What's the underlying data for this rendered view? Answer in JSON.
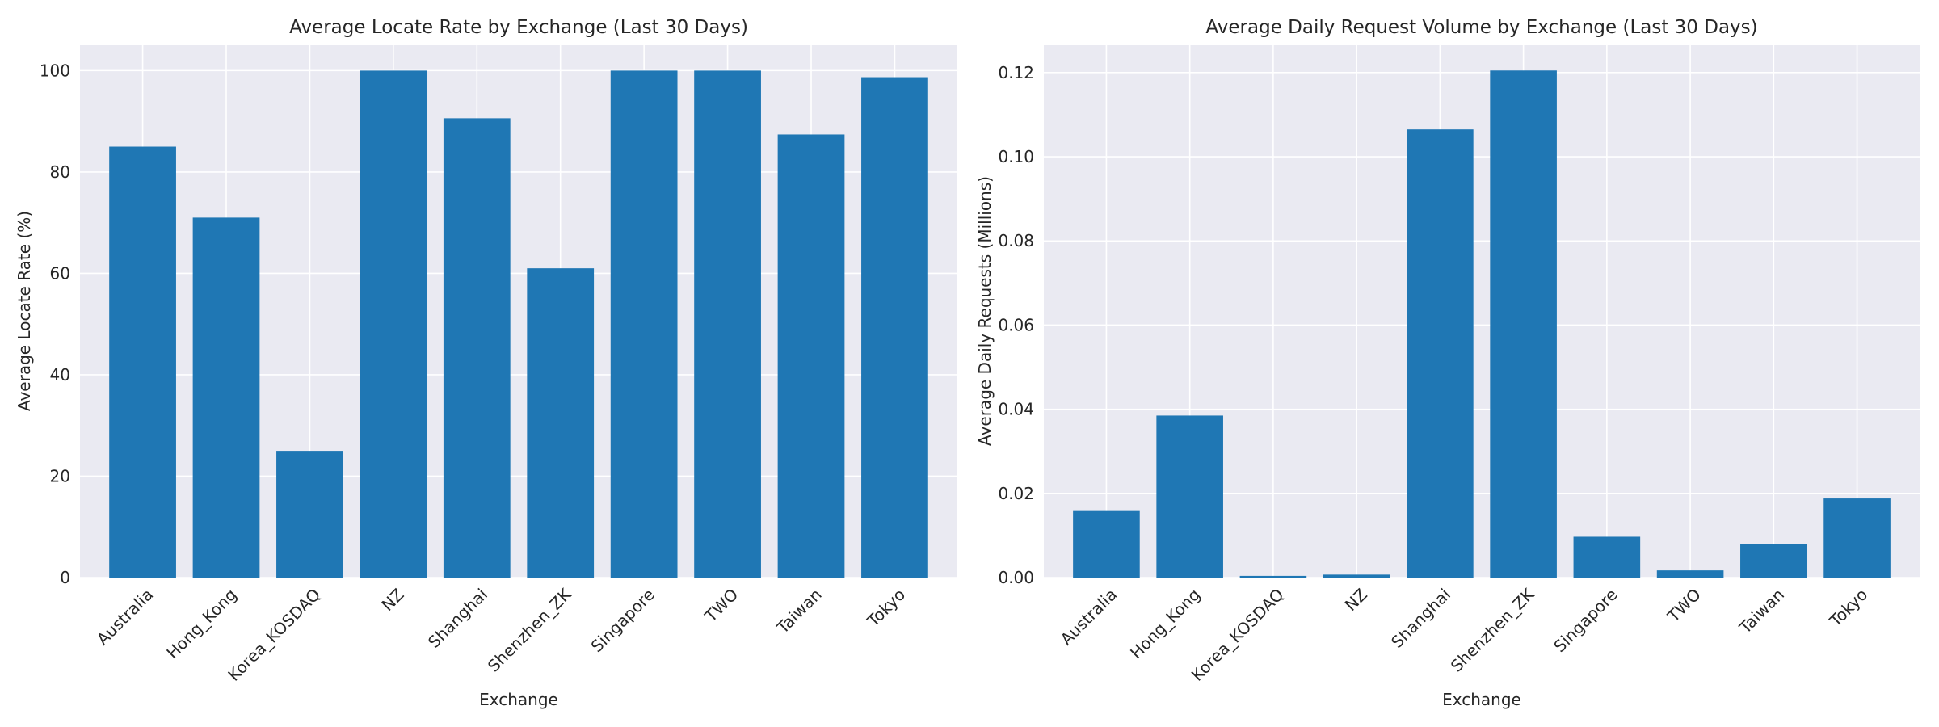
{
  "chart_data": [
    {
      "type": "bar",
      "title": "Average Locate Rate by Exchange (Last 30 Days)",
      "xlabel": "Exchange",
      "ylabel": "Average Locate Rate (%)",
      "categories": [
        "Australia",
        "Hong_Kong",
        "Korea_KOSDAQ",
        "NZ",
        "Shanghai",
        "Shenzhen_ZK",
        "Singapore",
        "TWO",
        "Taiwan",
        "Tokyo"
      ],
      "values": [
        85.0,
        71.0,
        25.0,
        100.0,
        90.6,
        61.0,
        100.0,
        100.0,
        87.4,
        98.7
      ],
      "ylim": [
        0,
        105
      ],
      "yticks": [
        0,
        20,
        40,
        60,
        80,
        100
      ],
      "ytick_labels": [
        "0",
        "20",
        "40",
        "60",
        "80",
        "100"
      ],
      "grid": true,
      "color": "#1f77b4"
    },
    {
      "type": "bar",
      "title": "Average Daily Request Volume by Exchange (Last 30 Days)",
      "xlabel": "Exchange",
      "ylabel": "Average Daily Requests (Millions)",
      "categories": [
        "Australia",
        "Hong_Kong",
        "Korea_KOSDAQ",
        "NZ",
        "Shanghai",
        "Shenzhen_ZK",
        "Singapore",
        "TWO",
        "Taiwan",
        "Tokyo"
      ],
      "values": [
        0.016,
        0.0385,
        0.0004,
        0.0007,
        0.1065,
        0.1205,
        0.0097,
        0.0017,
        0.0079,
        0.0188
      ],
      "ylim": [
        0,
        0.1265
      ],
      "yticks": [
        0,
        0.02,
        0.04,
        0.06,
        0.08,
        0.1,
        0.12
      ],
      "ytick_labels": [
        "0.00",
        "0.02",
        "0.04",
        "0.06",
        "0.08",
        "0.10",
        "0.12"
      ],
      "grid": true,
      "color": "#1f77b4"
    }
  ]
}
